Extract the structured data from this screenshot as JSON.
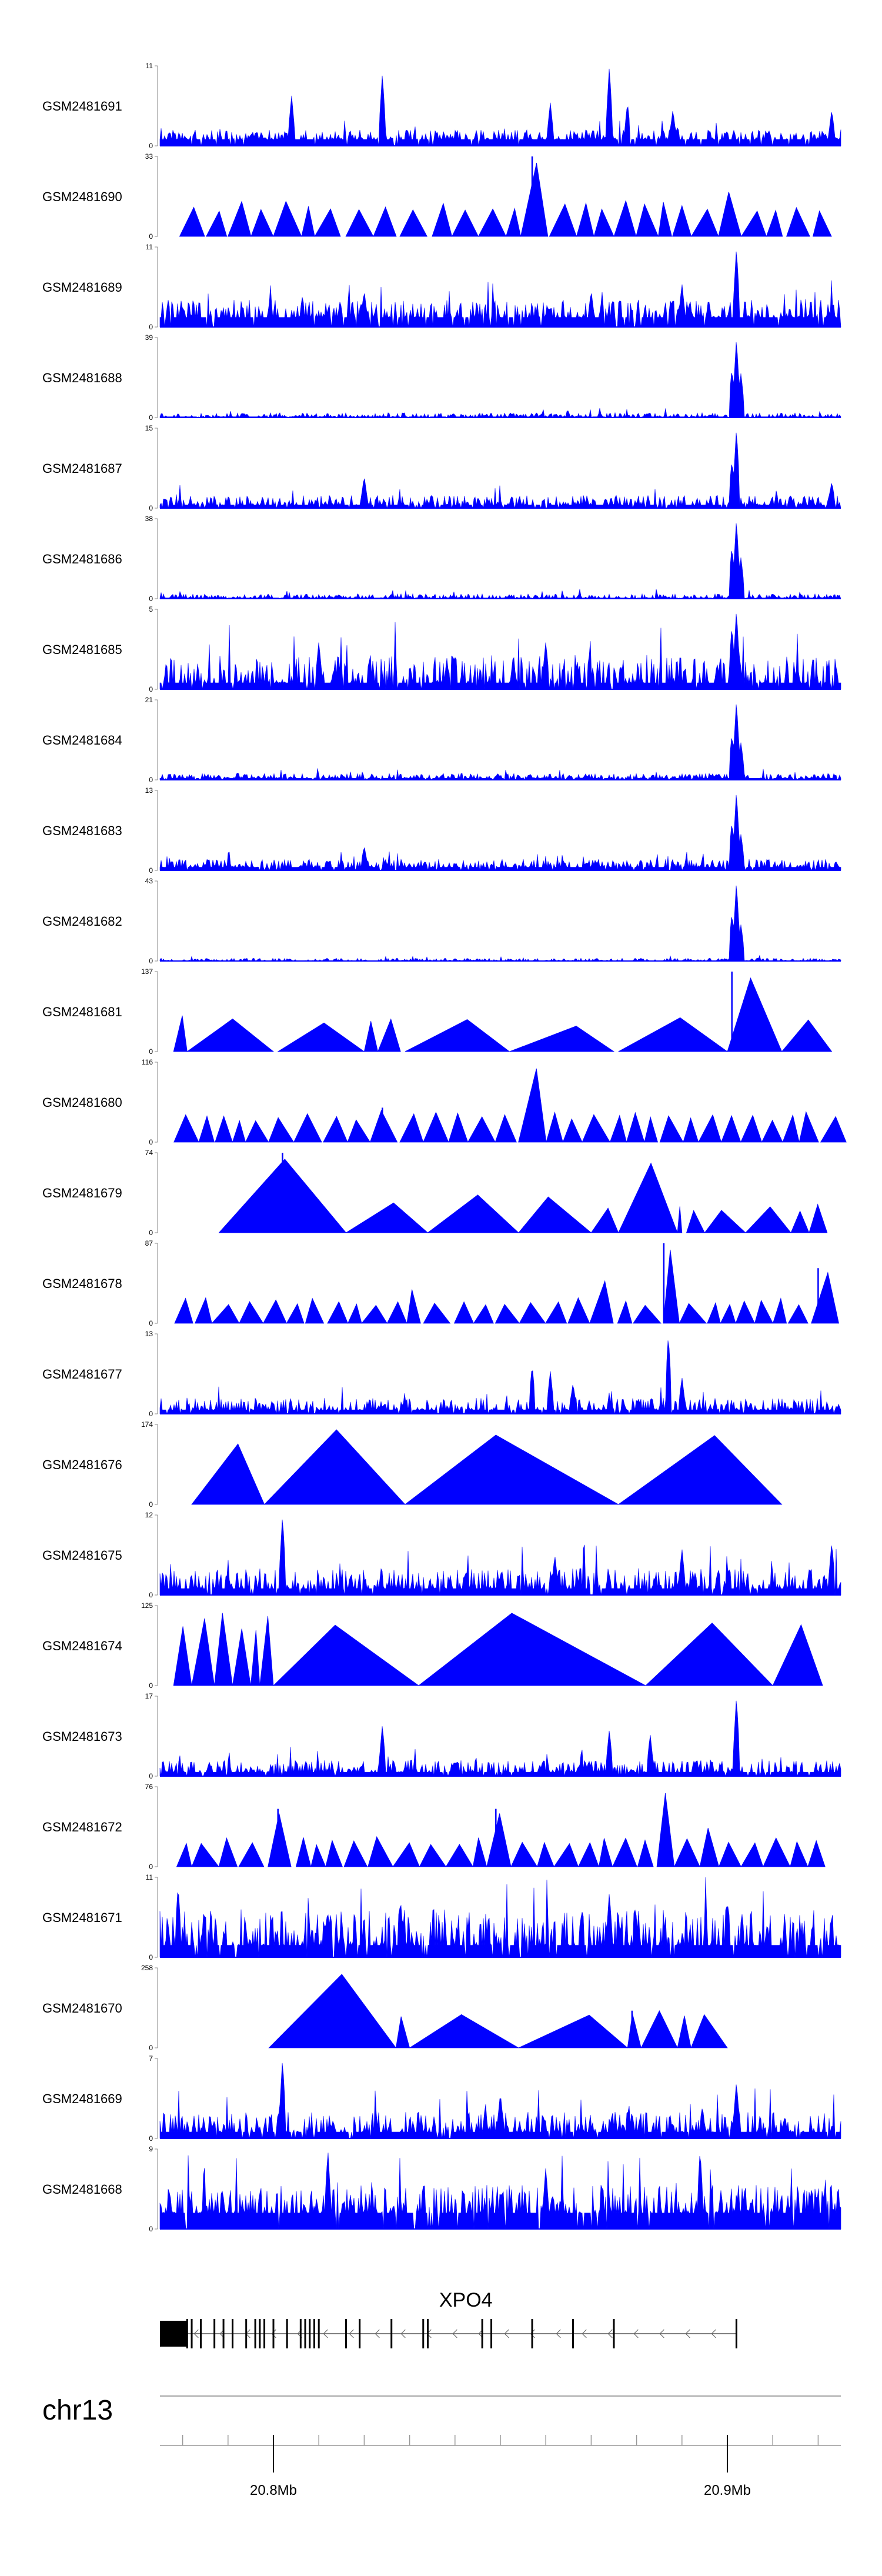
{
  "chart_data": {
    "type": "area",
    "title": "",
    "xlabel": "",
    "ylabel": "",
    "chromosome": "chr13",
    "xlim": [
      20.775,
      20.925
    ],
    "x_ticks": [
      {
        "value": 20.8,
        "label": "20.8Mb"
      },
      {
        "value": 20.9,
        "label": "20.9Mb"
      }
    ],
    "series_color": "#0000ff",
    "tracks": [
      {
        "name": "GSM2481691",
        "ymax": 11,
        "ymin": 0,
        "style": "dense",
        "baseline": 0.08,
        "noise": 0.12,
        "peaks": [
          [
            20.804,
            7
          ],
          [
            20.824,
            10
          ],
          [
            20.861,
            6
          ],
          [
            20.874,
            11
          ],
          [
            20.878,
            6
          ],
          [
            20.888,
            5
          ],
          [
            20.923,
            5
          ]
        ]
      },
      {
        "name": "GSM2481690",
        "ymax": 33,
        "ymin": 0,
        "style": "triangles",
        "tri_height": 0.45,
        "peaks": [
          [
            20.857,
            33
          ],
          [
            20.9,
            20
          ],
          [
            20.838,
            14
          ]
        ],
        "spikes": [
          [
            20.857,
            33
          ]
        ]
      },
      {
        "name": "GSM2481689",
        "ymax": 11,
        "ymin": 0,
        "style": "dense",
        "baseline": 0.12,
        "noise": 0.22,
        "peaks": [
          [
            20.902,
            11
          ],
          [
            20.89,
            6
          ],
          [
            20.82,
            5
          ],
          [
            20.87,
            5
          ]
        ]
      },
      {
        "name": "GSM2481688",
        "ymax": 39,
        "ymin": 0,
        "style": "dense",
        "baseline": 0.01,
        "noise": 0.05,
        "peaks": [
          [
            20.902,
            39
          ],
          [
            20.901,
            24
          ],
          [
            20.903,
            22
          ]
        ]
      },
      {
        "name": "GSM2481687",
        "ymax": 15,
        "ymin": 0,
        "style": "dense",
        "baseline": 0.04,
        "noise": 0.12,
        "peaks": [
          [
            20.902,
            15
          ],
          [
            20.901,
            9
          ],
          [
            20.82,
            6
          ],
          [
            20.923,
            5
          ]
        ]
      },
      {
        "name": "GSM2481686",
        "ymax": 38,
        "ymin": 0,
        "style": "dense",
        "baseline": 0.01,
        "noise": 0.05,
        "peaks": [
          [
            20.902,
            38
          ],
          [
            20.901,
            25
          ],
          [
            20.903,
            20
          ]
        ]
      },
      {
        "name": "GSM2481685",
        "ymax": 5,
        "ymin": 0,
        "style": "dense",
        "baseline": 0.08,
        "noise": 0.35,
        "peaks": [
          [
            20.902,
            5
          ],
          [
            20.901,
            4
          ],
          [
            20.81,
            3
          ],
          [
            20.86,
            3
          ]
        ]
      },
      {
        "name": "GSM2481684",
        "ymax": 21,
        "ymin": 0,
        "style": "dense",
        "baseline": 0.02,
        "noise": 0.06,
        "peaks": [
          [
            20.902,
            21
          ],
          [
            20.901,
            12
          ],
          [
            20.903,
            10
          ]
        ]
      },
      {
        "name": "GSM2481683",
        "ymax": 13,
        "ymin": 0,
        "style": "dense",
        "baseline": 0.04,
        "noise": 0.1,
        "peaks": [
          [
            20.902,
            13
          ],
          [
            20.901,
            8
          ],
          [
            20.903,
            6
          ],
          [
            20.82,
            4
          ]
        ]
      },
      {
        "name": "GSM2481682",
        "ymax": 43,
        "ymin": 0,
        "style": "dense",
        "baseline": 0.005,
        "noise": 0.03,
        "peaks": [
          [
            20.902,
            43
          ],
          [
            20.901,
            26
          ],
          [
            20.903,
            20
          ]
        ]
      },
      {
        "name": "GSM2481681",
        "ymax": 137,
        "ymin": 0,
        "style": "triangles",
        "tri_height": 0.45,
        "segments": [
          [
            20.778,
            20.781
          ],
          [
            20.781,
            20.8
          ],
          [
            20.801,
            20.82
          ],
          [
            20.82,
            20.823
          ],
          [
            20.823,
            20.828
          ],
          [
            20.829,
            20.852
          ],
          [
            20.852,
            20.875
          ],
          [
            20.876,
            20.9
          ],
          [
            20.9,
            20.912
          ],
          [
            20.912,
            20.923
          ]
        ],
        "peaks": [
          [
            20.901,
            137
          ]
        ],
        "spikes": [
          [
            20.901,
            137
          ]
        ]
      },
      {
        "name": "GSM2481680",
        "ymax": 116,
        "ymin": 0,
        "style": "triangles",
        "tri_height": 0.38,
        "peaks": [
          [
            20.858,
            116
          ],
          [
            20.824,
            50
          ],
          [
            20.826,
            45
          ],
          [
            20.845,
            40
          ]
        ],
        "spikes": [
          [
            20.824,
            50
          ]
        ]
      },
      {
        "name": "GSM2481679",
        "ymax": 74,
        "ymin": 0,
        "style": "triangles",
        "tri_height": 0.38,
        "segments": [
          [
            20.788,
            20.816
          ],
          [
            20.816,
            20.834
          ],
          [
            20.834,
            20.854
          ],
          [
            20.854,
            20.87
          ],
          [
            20.87,
            20.876
          ],
          [
            20.876,
            20.889
          ],
          [
            20.889,
            20.89
          ],
          [
            20.891,
            20.895
          ],
          [
            20.895,
            20.904
          ],
          [
            20.904,
            20.914
          ],
          [
            20.914,
            20.918
          ],
          [
            20.918,
            20.922
          ]
        ],
        "peaks": [
          [
            20.802,
            74
          ],
          [
            20.885,
            70
          ],
          [
            20.818,
            30
          ],
          [
            20.841,
            38
          ],
          [
            20.856,
            36
          ]
        ],
        "spikes": [
          [
            20.802,
            74
          ]
        ]
      },
      {
        "name": "GSM2481678",
        "ymax": 87,
        "ymin": 0,
        "style": "triangles",
        "tri_height": 0.32,
        "peaks": [
          [
            20.886,
            87
          ],
          [
            20.92,
            60
          ],
          [
            20.873,
            50
          ],
          [
            20.83,
            40
          ]
        ],
        "spikes": [
          [
            20.886,
            87
          ],
          [
            20.92,
            60
          ]
        ]
      },
      {
        "name": "GSM2481677",
        "ymax": 13,
        "ymin": 0,
        "style": "dense",
        "baseline": 0.05,
        "noise": 0.15,
        "peaks": [
          [
            20.887,
            13
          ],
          [
            20.857,
            8
          ],
          [
            20.861,
            7
          ],
          [
            20.866,
            5
          ],
          [
            20.89,
            6
          ]
        ]
      },
      {
        "name": "GSM2481676",
        "ymax": 174,
        "ymin": 0,
        "style": "triangles",
        "tri_height": 1.0,
        "segments": [
          [
            20.782,
            20.798
          ],
          [
            20.798,
            20.829
          ],
          [
            20.829,
            20.876
          ],
          [
            20.876,
            20.912
          ]
        ],
        "peaks": []
      },
      {
        "name": "GSM2481675",
        "ymax": 12,
        "ymin": 0,
        "style": "dense",
        "baseline": 0.08,
        "noise": 0.25,
        "peaks": [
          [
            20.802,
            12
          ],
          [
            20.923,
            8
          ],
          [
            20.89,
            7
          ],
          [
            20.862,
            6
          ]
        ]
      },
      {
        "name": "GSM2481674",
        "ymax": 125,
        "ymin": 0,
        "style": "triangles",
        "tri_height": 0.95,
        "segments": [
          [
            20.778,
            20.782
          ],
          [
            20.782,
            20.787
          ],
          [
            20.787,
            20.791
          ],
          [
            20.791,
            20.795
          ],
          [
            20.795,
            20.797
          ],
          [
            20.797,
            20.8
          ],
          [
            20.8,
            20.832
          ],
          [
            20.832,
            20.882
          ],
          [
            20.882,
            20.91
          ],
          [
            20.91,
            20.921
          ]
        ],
        "peaks": []
      },
      {
        "name": "GSM2481673",
        "ymax": 17,
        "ymin": 0,
        "style": "dense",
        "baseline": 0.05,
        "noise": 0.15,
        "peaks": [
          [
            20.902,
            17
          ],
          [
            20.824,
            11
          ],
          [
            20.874,
            10
          ],
          [
            20.883,
            9
          ]
        ]
      },
      {
        "name": "GSM2481672",
        "ymax": 76,
        "ymin": 0,
        "style": "triangles",
        "tri_height": 0.38,
        "peaks": [
          [
            20.886,
            76
          ],
          [
            20.801,
            55
          ],
          [
            20.849,
            55
          ],
          [
            20.894,
            40
          ]
        ],
        "spikes": [
          [
            20.801,
            55
          ],
          [
            20.849,
            55
          ]
        ]
      },
      {
        "name": "GSM2481671",
        "ymax": 11,
        "ymin": 0,
        "style": "dense",
        "baseline": 0.15,
        "noise": 0.45,
        "peaks": [
          [
            20.779,
            10
          ],
          [
            20.828,
            8
          ],
          [
            20.874,
            9
          ],
          [
            20.9,
            8
          ]
        ]
      },
      {
        "name": "GSM2481670",
        "ymax": 258,
        "ymin": 0,
        "style": "triangles",
        "tri_height": 0.5,
        "segments": [
          [
            20.799,
            20.827
          ],
          [
            20.827,
            20.83
          ],
          [
            20.83,
            20.854
          ],
          [
            20.854,
            20.878
          ],
          [
            20.878,
            20.881
          ],
          [
            20.881,
            20.889
          ],
          [
            20.889,
            20.892
          ],
          [
            20.892,
            20.9
          ]
        ],
        "peaks": [
          [
            20.826,
            258
          ],
          [
            20.84,
            60
          ],
          [
            20.879,
            120
          ],
          [
            20.891,
            60
          ]
        ],
        "spikes": [
          [
            20.84,
            60
          ],
          [
            20.879,
            120
          ]
        ]
      },
      {
        "name": "GSM2481669",
        "ymax": 7,
        "ymin": 0,
        "style": "dense",
        "baseline": 0.08,
        "noise": 0.25,
        "peaks": [
          [
            20.802,
            7
          ],
          [
            20.85,
            4
          ],
          [
            20.902,
            5
          ]
        ]
      },
      {
        "name": "GSM2481668",
        "ymax": 9,
        "ymin": 0,
        "style": "dense",
        "baseline": 0.2,
        "noise": 0.35,
        "peaks": [
          [
            20.812,
            9
          ],
          [
            20.894,
            9
          ],
          [
            20.86,
            7
          ]
        ]
      }
    ],
    "gene": {
      "name": "XPO4",
      "start": 20.775,
      "end": 20.902,
      "strand": "-",
      "utr": [
        20.775,
        20.781
      ],
      "exons": [
        20.781,
        20.782,
        20.784,
        20.787,
        20.789,
        20.791,
        20.794,
        20.796,
        20.797,
        20.798,
        20.8,
        20.803,
        20.806,
        20.807,
        20.808,
        20.809,
        20.81,
        20.816,
        20.819,
        20.826,
        20.833,
        20.834,
        20.846,
        20.848,
        20.857,
        20.866,
        20.875,
        20.902
      ]
    }
  }
}
